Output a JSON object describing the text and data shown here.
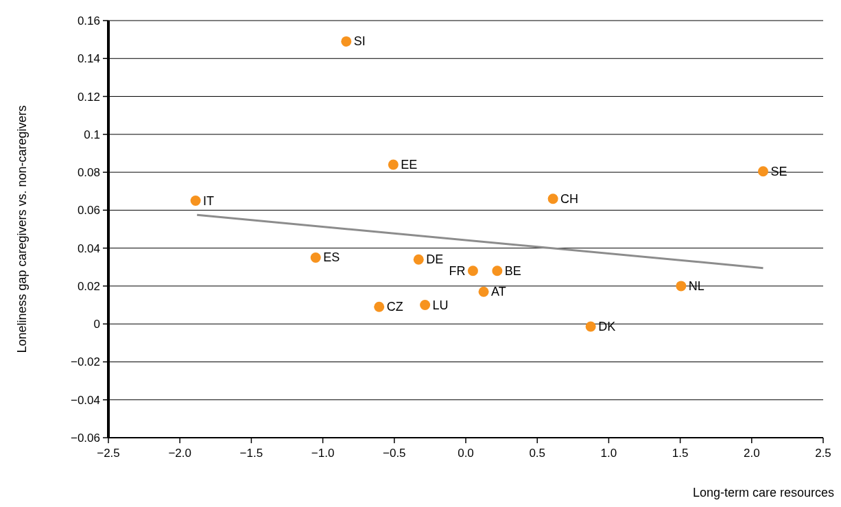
{
  "chart_data": {
    "type": "scatter",
    "xlabel": "Long-term care resources",
    "ylabel": "Loneliness gap caregivers vs. non-caregivers",
    "xlim": [
      -2.5,
      2.5
    ],
    "ylim": [
      -0.06,
      0.16
    ],
    "xticks": [
      {
        "value": -2.5,
        "label": "−2.5"
      },
      {
        "value": -2,
        "label": "−2.0"
      },
      {
        "value": -1.5,
        "label": "−1.5"
      },
      {
        "value": -1,
        "label": "−1.0"
      },
      {
        "value": -0.5,
        "label": "−0.5"
      },
      {
        "value": 0,
        "label": "0.0"
      },
      0.5,
      {
        "value": 1,
        "label": "1.0"
      },
      1.5,
      {
        "value": 2,
        "label": "2.0"
      },
      2.5
    ],
    "yticks": [
      {
        "value": -0.06,
        "label": "−0.06"
      },
      {
        "value": -0.04,
        "label": "−0.04"
      },
      {
        "value": -0.02,
        "label": "−0.02"
      },
      0,
      0.02,
      0.04,
      0.06,
      0.08,
      0.1,
      0.12,
      0.14,
      0.16
    ],
    "grid": "y",
    "series": [
      {
        "marker": "circle",
        "color": "#f7931e",
        "x": [
          -0.836,
          -0.507,
          -1.89,
          0.61,
          2.08,
          -1.05,
          -0.33,
          0.05,
          0.22,
          0.125,
          -0.606,
          -0.285,
          1.506,
          0.874
        ],
        "values": [
          0.149,
          0.084,
          0.065,
          0.066,
          0.0805,
          0.035,
          0.034,
          0.028,
          0.028,
          0.017,
          0.009,
          0.01,
          0.02,
          -0.0014
        ]
      },
      {
        "type": "line",
        "color": "#8c8c8c",
        "x": [
          -1.88,
          2.08
        ],
        "values": [
          0.0575,
          0.0295
        ]
      }
    ],
    "annotations": [
      {
        "text": "SI",
        "x": -0.836,
        "y": 0.149
      },
      {
        "text": "EE",
        "x": -0.507,
        "y": 0.084
      },
      {
        "text": "IT",
        "x": -1.89,
        "y": 0.065
      },
      {
        "text": "CH",
        "x": 0.61,
        "y": 0.066
      },
      {
        "text": "SE",
        "x": 2.08,
        "y": 0.0805
      },
      {
        "text": "ES",
        "x": -1.05,
        "y": 0.035
      },
      {
        "text": "DE",
        "x": -0.33,
        "y": 0.034
      },
      {
        "text": "FR",
        "x": 0.05,
        "y": 0.028
      },
      {
        "text": "BE",
        "x": 0.22,
        "y": 0.028
      },
      {
        "text": "AT",
        "x": 0.125,
        "y": 0.017
      },
      {
        "text": "CZ",
        "x": -0.606,
        "y": 0.009
      },
      {
        "text": "LU",
        "x": -0.285,
        "y": 0.01
      },
      {
        "text": "NL",
        "x": 1.506,
        "y": 0.02
      },
      {
        "text": "DK",
        "x": 0.874,
        "y": -0.0014
      }
    ]
  }
}
